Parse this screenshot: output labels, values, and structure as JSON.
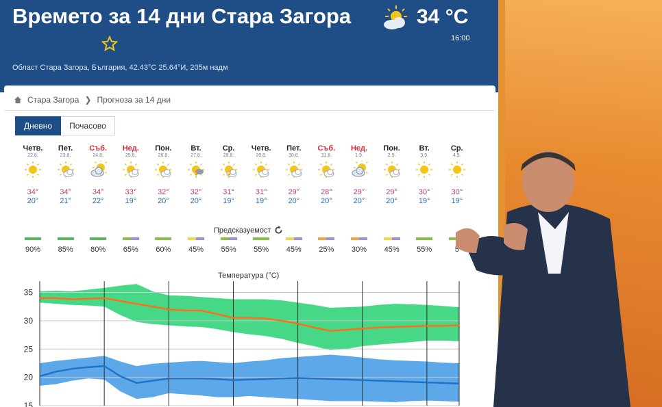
{
  "header": {
    "title": "Времето за 14 дни Стара Загора",
    "location": "Област Стара Загора, България, 42.43°С 25.64°И, 205м надм",
    "current_temp": "34 °C",
    "current_time": "16:00",
    "current_icon": "sun-cloud-icon"
  },
  "breadcrumb": {
    "home": "Стара Загора",
    "current": "Прогноза за 14 дни"
  },
  "tabs": [
    {
      "label": "Дневно",
      "active": true
    },
    {
      "label": "Почасово",
      "active": false
    }
  ],
  "days": [
    {
      "name": "Четв.",
      "date": "22.8.",
      "weekend": false,
      "icon": "sun",
      "max": "34°",
      "min": "20°"
    },
    {
      "name": "Пет.",
      "date": "23.8.",
      "weekend": false,
      "icon": "sun-cloud",
      "max": "34°",
      "min": "21°"
    },
    {
      "name": "Съб.",
      "date": "24.8.",
      "weekend": true,
      "icon": "cloud-sun",
      "max": "34°",
      "min": "22°"
    },
    {
      "name": "Нед.",
      "date": "25.8.",
      "weekend": true,
      "icon": "sun-cloud",
      "max": "33°",
      "min": "19°"
    },
    {
      "name": "Пон.",
      "date": "26.8.",
      "weekend": false,
      "icon": "sun-cloud",
      "max": "32°",
      "min": "20°"
    },
    {
      "name": "Вт.",
      "date": "27.8.",
      "weekend": false,
      "icon": "sun-storm",
      "max": "32°",
      "min": "20°"
    },
    {
      "name": "Ср.",
      "date": "28.8.",
      "weekend": false,
      "icon": "sun-storm-cloud",
      "max": "31°",
      "min": "19°"
    },
    {
      "name": "Четв.",
      "date": "29.8.",
      "weekend": false,
      "icon": "sun-cloud",
      "max": "31°",
      "min": "19°"
    },
    {
      "name": "Пет.",
      "date": "30.8.",
      "weekend": false,
      "icon": "sun-cloud",
      "max": "29°",
      "min": "20°"
    },
    {
      "name": "Съб.",
      "date": "31.8.",
      "weekend": true,
      "icon": "sun-cloud",
      "max": "28°",
      "min": "20°"
    },
    {
      "name": "Нед.",
      "date": "1.9.",
      "weekend": true,
      "icon": "cloud-sun",
      "max": "29°",
      "min": "20°"
    },
    {
      "name": "Пон.",
      "date": "2.9.",
      "weekend": false,
      "icon": "sun-cloud",
      "max": "29°",
      "min": "20°"
    },
    {
      "name": "Вт.",
      "date": "3.9.",
      "weekend": false,
      "icon": "sun",
      "max": "30°",
      "min": "19°"
    },
    {
      "name": "Ср.",
      "date": "4.9.",
      "weekend": false,
      "icon": "sun",
      "max": "30°",
      "min": "19°"
    }
  ],
  "predictability": {
    "title": "Предсказуемост",
    "items": [
      {
        "pct": "90%",
        "colors": [
          "#5cb85c",
          "#5cb85c"
        ]
      },
      {
        "pct": "85%",
        "colors": [
          "#5cb85c",
          "#5cb85c"
        ]
      },
      {
        "pct": "80%",
        "colors": [
          "#5cb85c",
          "#5cb85c"
        ]
      },
      {
        "pct": "65%",
        "colors": [
          "#8bc34a",
          "#9b8fd6"
        ]
      },
      {
        "pct": "60%",
        "colors": [
          "#8bc34a",
          "#8bc34a"
        ]
      },
      {
        "pct": "45%",
        "colors": [
          "#f0d94a",
          "#9b8fd6"
        ]
      },
      {
        "pct": "55%",
        "colors": [
          "#8bc34a",
          "#9b8fd6"
        ]
      },
      {
        "pct": "55%",
        "colors": [
          "#8bc34a",
          "#8bc34a"
        ]
      },
      {
        "pct": "45%",
        "colors": [
          "#f0d94a",
          "#9b8fd6"
        ]
      },
      {
        "pct": "25%",
        "colors": [
          "#f0a64a",
          "#9b8fd6"
        ]
      },
      {
        "pct": "30%",
        "colors": [
          "#f0a64a",
          "#9b8fd6"
        ]
      },
      {
        "pct": "45%",
        "colors": [
          "#f0d94a",
          "#9b8fd6"
        ]
      },
      {
        "pct": "55%",
        "colors": [
          "#8bc34a",
          "#8bc34a"
        ]
      },
      {
        "pct": "5",
        "colors": [
          "#8bc34a",
          "#8bc34a"
        ]
      }
    ]
  },
  "chart_data": {
    "type": "area",
    "title": "Температура (°C)",
    "ylim": [
      15,
      37
    ],
    "yticks": [
      15,
      20,
      25,
      30,
      35
    ],
    "grid": true,
    "x": [
      0,
      0.5,
      1,
      1.5,
      2,
      2.5,
      3,
      3.5,
      4,
      4.5,
      5,
      5.5,
      6,
      6.5,
      7,
      7.5,
      8,
      8.5,
      9,
      9.5,
      10,
      10.5,
      11,
      11.5,
      12,
      12.5,
      13
    ],
    "series": [
      {
        "color": "#ff6f1a",
        "values": [
          34,
          34,
          33.8,
          33.9,
          34,
          33.5,
          33,
          32.5,
          32,
          31.8,
          31.8,
          31.2,
          30.5,
          30.5,
          30.4,
          30,
          29.5,
          28.8,
          28.2,
          28.4,
          28.6,
          28.8,
          28.9,
          29,
          29.1,
          29.1,
          29.2
        ]
      },
      {
        "color": "#1f73c9",
        "values": [
          20.2,
          21,
          21.5,
          21.8,
          22,
          20.2,
          19,
          19.4,
          19.8,
          19.8,
          19.8,
          19.7,
          19.5,
          19.6,
          19.7,
          19.8,
          19.9,
          19.8,
          19.7,
          19.6,
          19.5,
          19.4,
          19.3,
          19.2,
          19.1,
          19.0,
          18.9
        ]
      }
    ],
    "bands": [
      {
        "color": "#33d47a",
        "upper": [
          35.2,
          35.3,
          35.2,
          35.5,
          35.8,
          36.2,
          36.5,
          35.2,
          34.5,
          34.4,
          34.2,
          34.0,
          33.8,
          33.8,
          33.8,
          33.6,
          33.2,
          32.8,
          32.3,
          32.4,
          32.5,
          32.8,
          33,
          32.9,
          32.8,
          32.6,
          32.4
        ],
        "lower": [
          33.2,
          33,
          32.8,
          32.7,
          32.5,
          31,
          29.8,
          29.4,
          29.2,
          29.0,
          28.9,
          28.5,
          28,
          27.6,
          27.3,
          26.8,
          26.1,
          25.5,
          24.8,
          25,
          25.5,
          25.8,
          26,
          26.2,
          26.5,
          26.5,
          26.4
        ]
      },
      {
        "color": "#4a9fe6",
        "upper": [
          22.5,
          22.9,
          23.2,
          23.5,
          23.8,
          22.8,
          22,
          22.4,
          22.6,
          22.8,
          22.9,
          22.7,
          22.5,
          22.8,
          23,
          23.4,
          23.6,
          23.8,
          24,
          23.8,
          23.5,
          23.2,
          23,
          22.9,
          22.8,
          22.6,
          22.5
        ],
        "lower": [
          18.5,
          18.8,
          19.4,
          19.8,
          19.6,
          17.5,
          16.2,
          16.5,
          17.2,
          17,
          16.8,
          16.5,
          16.5,
          16.7,
          16.5,
          16.3,
          16.2,
          16.0,
          15.8,
          15.8,
          15.8,
          15.7,
          15.6,
          15.8,
          15.9,
          15.8,
          15.7
        ]
      }
    ]
  }
}
